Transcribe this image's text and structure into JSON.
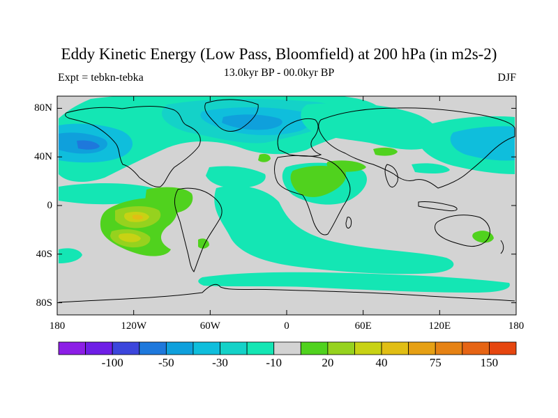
{
  "title": "Eddy Kinetic Energy (Low Pass, Bloomfield) at 200 hPa (in m2s-2)",
  "subtitle_left": "Expt = tebkn-tebka",
  "subtitle_center": "13.0kyr BP - 00.0kyr BP",
  "subtitle_right": "DJF",
  "map": {
    "lon_range": [
      -180,
      180
    ],
    "lat_range": [
      -90,
      90
    ],
    "lat_ticks": [
      {
        "value": 80,
        "label": "80N"
      },
      {
        "value": 40,
        "label": "40N"
      },
      {
        "value": 0,
        "label": "0"
      },
      {
        "value": -40,
        "label": "40S"
      },
      {
        "value": -80,
        "label": "80S"
      }
    ],
    "lon_ticks": [
      {
        "value": -180,
        "label": "180"
      },
      {
        "value": -120,
        "label": "120W"
      },
      {
        "value": -60,
        "label": "60W"
      },
      {
        "value": 0,
        "label": "0"
      },
      {
        "value": 60,
        "label": "60E"
      },
      {
        "value": 120,
        "label": "120E"
      },
      {
        "value": 180,
        "label": "180"
      }
    ],
    "background_color": "#d3d3d3",
    "coastline_color": "#000000"
  },
  "colorbar": {
    "colors": [
      "#8c1ee6",
      "#6e1ee6",
      "#3c46dc",
      "#1e78dc",
      "#0fa0dc",
      "#0fbedc",
      "#14d2c8",
      "#14e6b4",
      "#d3d3d3",
      "#50d21e",
      "#96d21e",
      "#c8d214",
      "#e1be14",
      "#e6a014",
      "#e68214",
      "#e66414",
      "#e6460f"
    ],
    "labels": [
      {
        "boundary": 2,
        "text": "-100"
      },
      {
        "boundary": 4,
        "text": "-50"
      },
      {
        "boundary": 6,
        "text": "-30"
      },
      {
        "boundary": 8,
        "text": "-10"
      },
      {
        "boundary": 10,
        "text": "20"
      },
      {
        "boundary": 12,
        "text": "40"
      },
      {
        "boundary": 14,
        "text": "75"
      },
      {
        "boundary": 16,
        "text": "150"
      }
    ]
  }
}
